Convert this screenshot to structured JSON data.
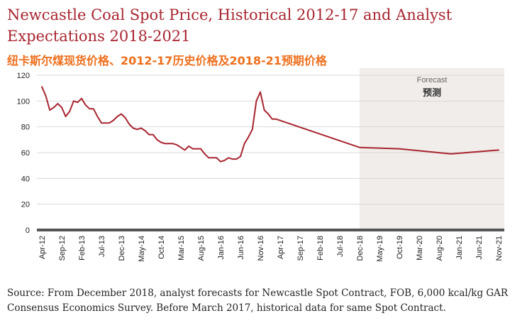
{
  "title": "Newcastle Coal Spot Price, Historical 2012-17 and Analyst Expectations 2018-2021",
  "subtitle": "纽卡斯尔煤现货价格、2012-17历史价格及2018-21预期价格",
  "source": "Source: From December 2018, analyst forecasts for Newcastle Spot Contract, FOB, 6,000 kcal/kg GAR Consensus Economics Survey. Before March 2017, historical data for same Spot Contract.",
  "chart_data": {
    "type": "line",
    "title": "Newcastle Coal Spot Price, Historical 2012-17 and Analyst Expectations 2018-2021",
    "ylim": [
      0,
      120
    ],
    "yticks": [
      0,
      20,
      40,
      60,
      80,
      100,
      120
    ],
    "xticks": [
      "Apr-12",
      "Sep-12",
      "Feb-13",
      "Jul-13",
      "Dec-13",
      "May-14",
      "Oct-14",
      "Mar-15",
      "Aug-15",
      "Jan-16",
      "Jun-16",
      "Nov-16",
      "Apr-17",
      "Sep-17",
      "Feb-18",
      "Jul-18",
      "Dec-18",
      "May-19",
      "Oct-19",
      "Mar-20",
      "Aug-20",
      "Jan-21",
      "Jun-21",
      "Nov-21"
    ],
    "forecast_region": {
      "from": "Dec-18",
      "to": "Nov-21",
      "label": "Forecast",
      "label_cn": "预测"
    },
    "series_color": "#a8242f",
    "series": [
      {
        "name": "",
        "points": [
          [
            "Apr-12",
            111
          ],
          [
            "May-12",
            104
          ],
          [
            "Jun-12",
            93
          ],
          [
            "Jul-12",
            95
          ],
          [
            "Aug-12",
            98
          ],
          [
            "Sep-12",
            95
          ],
          [
            "Oct-12",
            88
          ],
          [
            "Nov-12",
            92
          ],
          [
            "Dec-12",
            100
          ],
          [
            "Jan-13",
            99
          ],
          [
            "Feb-13",
            102
          ],
          [
            "Mar-13",
            97
          ],
          [
            "Apr-13",
            94
          ],
          [
            "May-13",
            94
          ],
          [
            "Jun-13",
            88
          ],
          [
            "Jul-13",
            83
          ],
          [
            "Aug-13",
            83
          ],
          [
            "Sep-13",
            83
          ],
          [
            "Oct-13",
            85
          ],
          [
            "Nov-13",
            88
          ],
          [
            "Dec-13",
            90
          ],
          [
            "Jan-14",
            87
          ],
          [
            "Feb-14",
            82
          ],
          [
            "Mar-14",
            79
          ],
          [
            "Apr-14",
            78
          ],
          [
            "May-14",
            79
          ],
          [
            "Jun-14",
            77
          ],
          [
            "Jul-14",
            74
          ],
          [
            "Aug-14",
            74
          ],
          [
            "Sep-14",
            70
          ],
          [
            "Oct-14",
            68
          ],
          [
            "Nov-14",
            67
          ],
          [
            "Dec-14",
            67
          ],
          [
            "Jan-15",
            67
          ],
          [
            "Feb-15",
            66
          ],
          [
            "Mar-15",
            64
          ],
          [
            "Apr-15",
            62
          ],
          [
            "May-15",
            65
          ],
          [
            "Jun-15",
            63
          ],
          [
            "Jul-15",
            63
          ],
          [
            "Aug-15",
            63
          ],
          [
            "Sep-15",
            59
          ],
          [
            "Oct-15",
            56
          ],
          [
            "Nov-15",
            56
          ],
          [
            "Dec-15",
            56
          ],
          [
            "Jan-16",
            53
          ],
          [
            "Feb-16",
            54
          ],
          [
            "Mar-16",
            56
          ],
          [
            "Apr-16",
            55
          ],
          [
            "May-16",
            55
          ],
          [
            "Jun-16",
            57
          ],
          [
            "Jul-16",
            67
          ],
          [
            "Aug-16",
            72
          ],
          [
            "Sep-16",
            78
          ],
          [
            "Oct-16",
            100
          ],
          [
            "Nov-16",
            107
          ],
          [
            "Dec-16",
            93
          ],
          [
            "Jan-17",
            90
          ],
          [
            "Feb-17",
            86
          ],
          [
            "Mar-17",
            86
          ],
          [
            "Dec-18",
            64
          ],
          [
            "Oct-19",
            63
          ],
          [
            "Nov-20",
            59
          ],
          [
            "Nov-21",
            62
          ]
        ]
      }
    ]
  }
}
